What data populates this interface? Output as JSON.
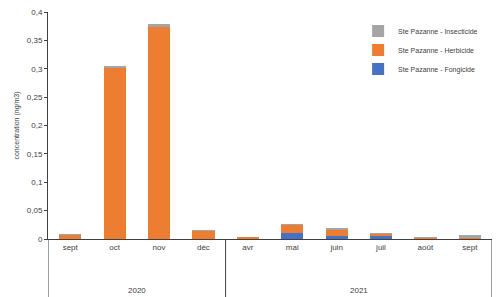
{
  "chart_data": {
    "type": "bar",
    "stacked": true,
    "y_label": "concentration (ng/m3)",
    "categories": [
      "sept",
      "oct",
      "nov",
      "déc",
      "avr",
      "mai",
      "juin",
      "juil",
      "août",
      "sept"
    ],
    "x_groups": [
      "2020",
      "2020",
      "2020",
      "2020",
      "2021",
      "2021",
      "2021",
      "2021",
      "2021",
      "2021"
    ],
    "series": [
      {
        "name": "Ste Pazanne - Fongicide",
        "color": "#4472c4",
        "values": [
          0,
          0,
          0,
          0,
          0,
          0.01,
          0.006,
          0.006,
          0,
          0
        ]
      },
      {
        "name": "Ste Pazanne - Herbicide",
        "color": "#ed7d31",
        "values": [
          0.007,
          0.302,
          0.373,
          0.014,
          0.003,
          0.015,
          0.01,
          0.002,
          0.001,
          0.002
        ]
      },
      {
        "name": "Ste Pazanne - Insecticide",
        "color": "#a5a5a5",
        "values": [
          0.002,
          0.003,
          0.005,
          0.001,
          0.001,
          0.002,
          0.003,
          0.003,
          0.003,
          0.005
        ]
      }
    ],
    "ylim": [
      0,
      0.4
    ],
    "yticks": [
      0,
      {
        "value": 0.05,
        "label": "0,05"
      },
      {
        "value": 0.1,
        "label": "0,1"
      },
      {
        "value": 0.15,
        "label": "0,15"
      },
      {
        "value": 0.2,
        "label": "0,2"
      },
      {
        "value": 0.25,
        "label": "0,25"
      },
      {
        "value": 0.3,
        "label": "0,3"
      },
      {
        "value": 0.35,
        "label": "0,35"
      },
      {
        "value": 0.4,
        "label": "0,4"
      }
    ],
    "grid": false,
    "legend": "top right"
  }
}
